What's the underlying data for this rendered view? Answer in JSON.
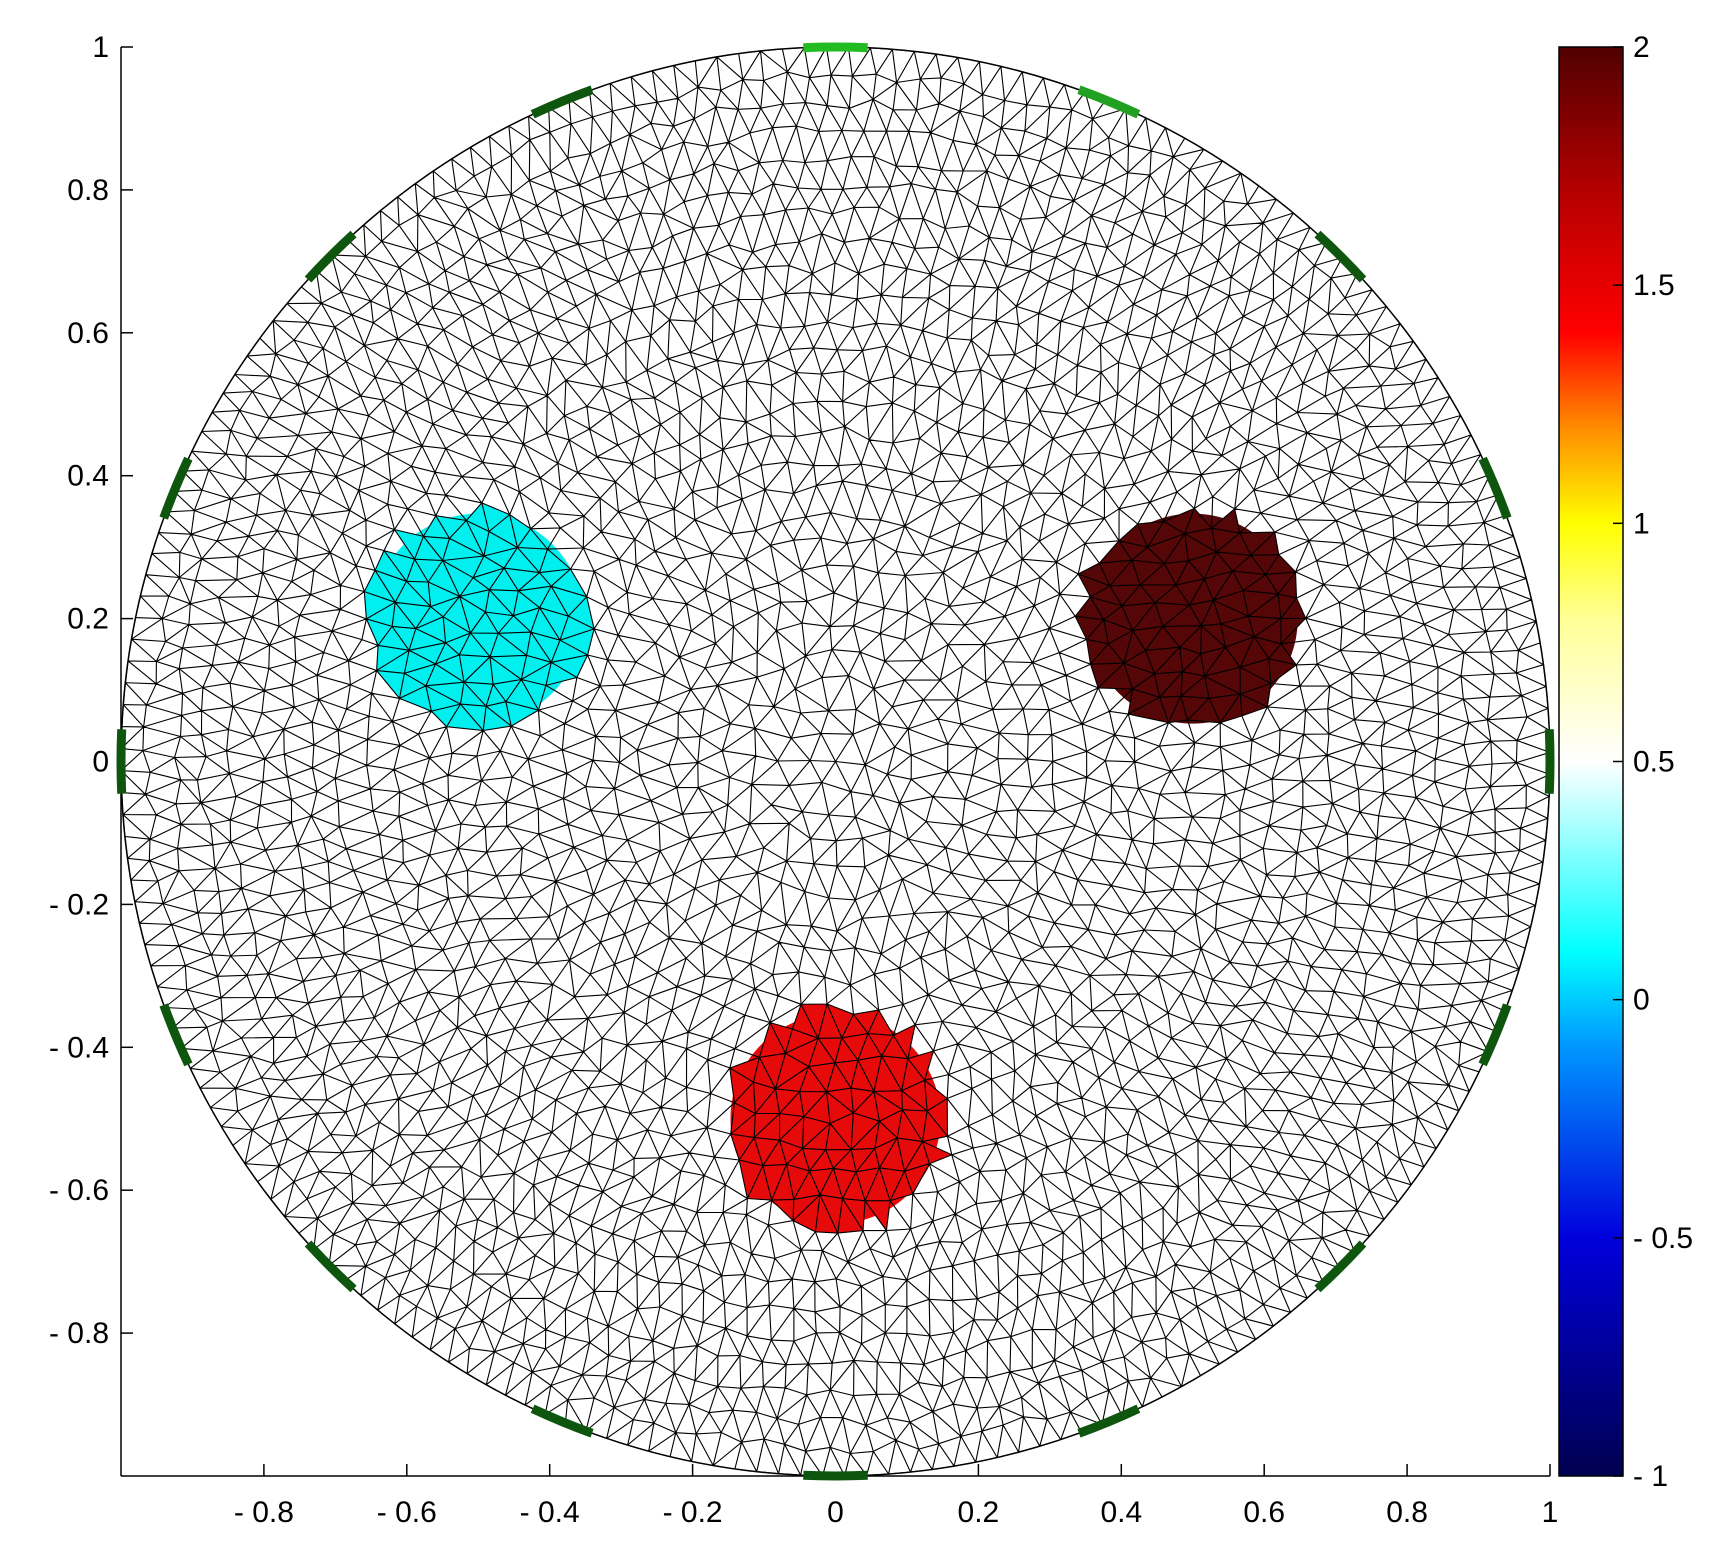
{
  "figure": {
    "type": "finite element mesh with inclusions",
    "domain_shape": "circle",
    "domain_center": [
      0,
      0
    ],
    "domain_radius": 1,
    "mesh_color": "#000000",
    "background_color": "#ffffff"
  },
  "axes": {
    "xlim": [
      -1,
      1
    ],
    "ylim": [
      -1,
      1
    ],
    "x_ticks": [
      -0.8,
      -0.6,
      -0.4,
      -0.2,
      0,
      0.2,
      0.4,
      0.6,
      0.8,
      1
    ],
    "x_tick_labels": [
      "- 0.8",
      "- 0.6",
      "- 0.4",
      "- 0.2",
      "0",
      "0.2",
      "0.4",
      "0.6",
      "0.8",
      "1"
    ],
    "y_ticks": [
      1,
      0.8,
      0.6,
      0.4,
      0.2,
      0,
      -0.2,
      -0.4,
      -0.6,
      -0.8
    ],
    "y_tick_labels": [
      "1",
      "0.8",
      "0.6",
      "0.4",
      "0.2",
      "0",
      "- 0.2",
      "- 0.4",
      "- 0.6",
      "- 0.8"
    ]
  },
  "inclusions": [
    {
      "center": [
        -0.5,
        0.2
      ],
      "radius": 0.15,
      "value": 0.2,
      "color": "#00f0f0"
    },
    {
      "center": [
        0.5,
        0.2
      ],
      "radius": 0.15,
      "value": 2,
      "color": "#550606"
    },
    {
      "center": [
        0,
        -0.5
      ],
      "radius": 0.15,
      "value": 1.6,
      "color": "#e60a0a"
    }
  ],
  "electrodes": {
    "count": 16,
    "angles_deg": [
      90,
      67.5,
      45,
      22.5,
      0,
      -22.5,
      -45,
      -67.5,
      -90,
      -112.5,
      -135,
      -157.5,
      180,
      157.5,
      135,
      112.5
    ],
    "colors": [
      "#22bb22",
      "#22a022",
      "#0e550e",
      "#0e550e",
      "#0e550e",
      "#0e550e",
      "#0e550e",
      "#0e550e",
      "#0e550e",
      "#0e550e",
      "#0e550e",
      "#0e550e",
      "#0e550e",
      "#0e550e",
      "#0e550e",
      "#0e550e"
    ]
  },
  "colorbar": {
    "range": [
      -1,
      2
    ],
    "ticks": [
      2,
      1.5,
      1,
      0.5,
      0,
      -0.5,
      -1
    ],
    "tick_labels": [
      "2",
      "1.5",
      "1",
      "0.5",
      "0",
      "- 0.5",
      "- 1"
    ],
    "colormap_stops": [
      {
        "value": -1,
        "color": "#000050"
      },
      {
        "value": -0.5,
        "color": "#0000dc"
      },
      {
        "value": -0.1,
        "color": "#0096ff"
      },
      {
        "value": 0.1,
        "color": "#00ffff"
      },
      {
        "value": 0.5,
        "color": "#ffffff"
      },
      {
        "value": 0.8,
        "color": "#ffff96"
      },
      {
        "value": 1.0,
        "color": "#ffff00"
      },
      {
        "value": 1.2,
        "color": "#ff8c00"
      },
      {
        "value": 1.4,
        "color": "#ff0000"
      },
      {
        "value": 1.7,
        "color": "#b40000"
      },
      {
        "value": 2,
        "color": "#500000"
      }
    ]
  }
}
